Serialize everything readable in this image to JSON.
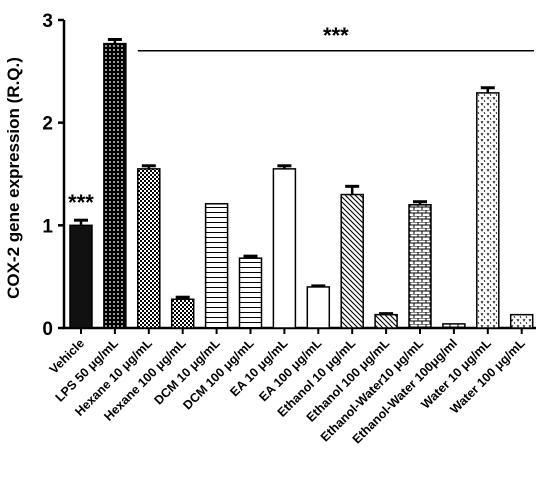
{
  "chart_data": {
    "type": "bar",
    "ylabel": "COX-2 gene expression (R.Q.)",
    "xlabel": "",
    "ylim": [
      0,
      3
    ],
    "yticks": [
      "0",
      "1",
      "2",
      "3"
    ],
    "grid": false,
    "categories": [
      "Vehicle",
      "LPS 50 μg/mL",
      "Hexane 10 μg/mL",
      "Hexane 100 μg/mL",
      "DCM 10 μg/mL",
      "DCM 100 μg/mL",
      "EA 10 μg/mL",
      "EA 100 μg/mL",
      "Ethanol 10 μg/mL",
      "Ethanol 100 μg/mL",
      "Ethanol-Water10 μg/mL",
      "Ethanol-Water 100μg/ml",
      "Water 10 μg/mL",
      "Water  100 μg/mL"
    ],
    "values": [
      1.0,
      2.77,
      1.55,
      0.28,
      1.21,
      0.68,
      1.55,
      0.4,
      1.3,
      0.13,
      1.2,
      0.04,
      2.29,
      0.13
    ],
    "errors": [
      0.05,
      0.04,
      0.03,
      0.02,
      0.0,
      0.02,
      0.03,
      0.01,
      0.08,
      0.01,
      0.03,
      0.0,
      0.05,
      0.0
    ],
    "patterns": [
      "solid",
      "dots",
      "checker",
      "checker",
      "hlines",
      "hlines",
      "white",
      "white",
      "diag",
      "diag",
      "brick",
      "brick",
      "vdots",
      "vdots"
    ],
    "annotations": [
      {
        "text": "***",
        "target": "Vehicle"
      },
      {
        "text": "***",
        "target": "bracket",
        "from_category": "Hexane 10 μg/mL",
        "to_category": "Water  100 μg/mL",
        "y_value": 2.7
      }
    ]
  }
}
